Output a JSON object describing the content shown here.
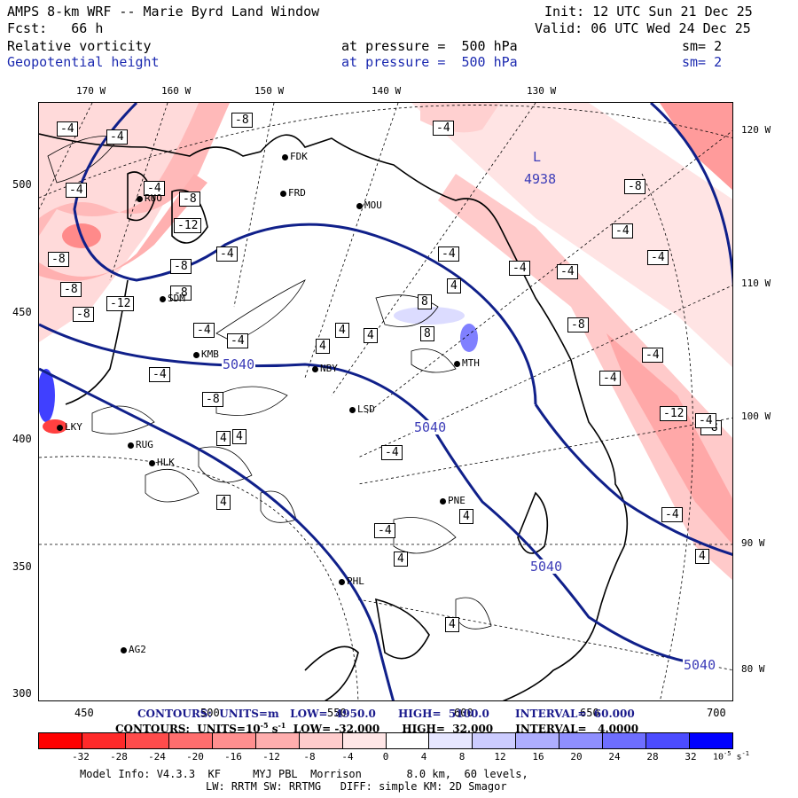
{
  "header": {
    "title": "AMPS 8-km WRF -- Marie Byrd Land Window",
    "init": "Init: 12 UTC Sun 21 Dec 25",
    "forecast": "Fcst:   66 h",
    "valid": "Valid: 06 UTC Wed 24 Dec 25",
    "field1_name": "Relative vorticity",
    "field1_level": "at pressure =  500 hPa",
    "field1_smooth": "sm= 2",
    "field2_name": "Geopotential height",
    "field2_level": "at pressure =  500 hPa",
    "field2_smooth": "sm= 2"
  },
  "map": {
    "top_lon_labels": [
      "170 W",
      "160 W",
      "150 W",
      "140 W",
      "130 W"
    ],
    "right_lon_labels": [
      "120 W",
      "110 W",
      "100 W",
      "90 W",
      "80 W"
    ],
    "left_y_ticks": [
      "500",
      "450",
      "400",
      "350",
      "300"
    ],
    "bottom_x_ticks": [
      "450",
      "500",
      "550",
      "600",
      "650",
      "700"
    ],
    "low_center": {
      "letter": "L",
      "value": "4938"
    },
    "height_labels": [
      "5040",
      "5040",
      "5040",
      "5040"
    ],
    "vorticity_labels": [
      "-4",
      "-4",
      "-8",
      "-4",
      "-8",
      "-4",
      "-8",
      "-8",
      "-12",
      "-8",
      "-8",
      "-12",
      "-8",
      "-4",
      "-4",
      "-4",
      "-4",
      "-8",
      "-4",
      "-4",
      "-4",
      "-4",
      "-4",
      "-8",
      "-8",
      "-4",
      "-4",
      "-4",
      "4",
      "4",
      "4",
      "4",
      "8",
      "8",
      "4",
      "4",
      "4",
      "-4",
      "-12",
      "-8",
      "-4",
      "4",
      "4",
      "-4",
      "4",
      "4",
      "-4"
    ],
    "stations": [
      "FDK",
      "FRD",
      "MOU",
      "RUO",
      "SDM",
      "KMB",
      "NBY",
      "LSD",
      "RUG",
      "HLK",
      "PNE",
      "PHL",
      "AG2",
      "LKY",
      "MTH"
    ]
  },
  "contour_info": {
    "line1": "CONTOURS:  UNITS=m   LOW=  4950.0      HIGH=  5100.0       INTERVAL=  60.000",
    "line2": "CONTOURS:  UNITS=10",
    "line2_exp": "-5",
    "line2_rest": " s",
    "line2_rest_exp": "-1",
    "line2_tail": "  LOW= -32.000      HIGH=  32.000      INTERVAL=   4.0000"
  },
  "colorbar": {
    "labels": [
      "-32",
      "-28",
      "-24",
      "-20",
      "-16",
      "-12",
      "-8",
      "-4",
      "0",
      "4",
      "8",
      "12",
      "16",
      "20",
      "24",
      "28",
      "32"
    ],
    "units": "10",
    "units_exp": "-5",
    "units_tail": " s",
    "units_tail_exp": "-1",
    "colors": [
      "#ff0000",
      "#ff2a2a",
      "#ff4c4c",
      "#ff6e6e",
      "#ff8f8f",
      "#ffaeae",
      "#ffcccc",
      "#ffe6e6",
      "#ffffff",
      "#ffffff",
      "#e6e6ff",
      "#ccccff",
      "#aeaeff",
      "#8f8fff",
      "#6e6eff",
      "#4c4cff",
      "#0000ff"
    ]
  },
  "footer": {
    "line1": "Model Info: V4.3.3  KF     MYJ PBL  Morrison       8.0 km,  60 levels,",
    "line2": "LW: RRTM SW: RRTMG   DIFF: simple KM: 2D Smagor"
  }
}
